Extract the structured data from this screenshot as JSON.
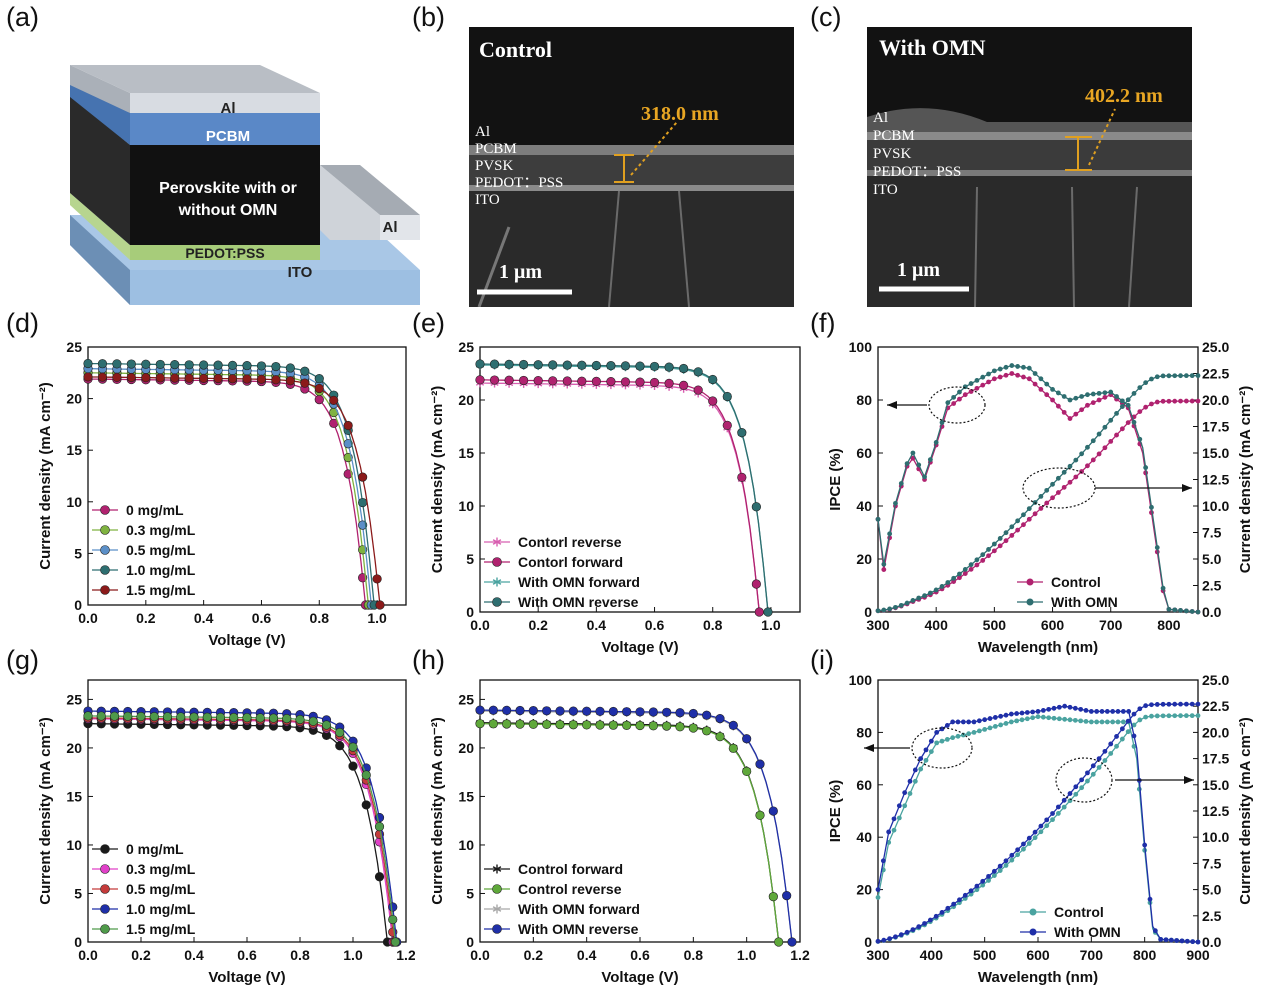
{
  "panel_labels": [
    "(a)",
    "(b)",
    "(c)",
    "(d)",
    "(e)",
    "(f)",
    "(g)",
    "(h)",
    "(i)"
  ],
  "device": {
    "layers": [
      "Al",
      "PCBM",
      "Perovskite with or",
      "without OMN",
      "PEDOT:PSS",
      "ITO",
      "Al"
    ]
  },
  "sem_b": {
    "title": "Control",
    "thickness": "318.0 nm",
    "layers": [
      "Al",
      "PCBM",
      "PVSK",
      "PEDOT：PSS",
      "ITO"
    ],
    "scale": "1 μm"
  },
  "sem_c": {
    "title": "With OMN",
    "thickness": "402.2 nm",
    "layers": [
      "Al",
      "PCBM",
      "PVSK",
      "PEDOT：PSS",
      "ITO"
    ],
    "scale": "1 μm"
  },
  "colors": {
    "magenta": "#b0226f",
    "green": "#7fb240",
    "blue_light": "#5b8fc7",
    "teal": "#2e6e70",
    "darkred": "#8b1a1a",
    "black": "#1a1a1a",
    "pink": "#d85fb0",
    "red": "#c43b3b",
    "navy": "#1f2fa8",
    "tealg": "#4aa3a0"
  },
  "chart_data": [
    {
      "panel": "d",
      "type": "line",
      "xlabel": "Voltage (V)",
      "ylabel": "Current density (mA cm⁻²)",
      "xlim": [
        0,
        1.1
      ],
      "ylim": [
        0,
        25
      ],
      "xticks": [
        "0.0",
        "0.2",
        "0.4",
        "0.6",
        "0.8",
        "1.0"
      ],
      "yticks": [
        "0",
        "5",
        "10",
        "15",
        "20",
        "25"
      ],
      "series": [
        {
          "name": "0    mg/mL",
          "Jsc": 21.9,
          "Voc": 0.96,
          "color": "#b0226f"
        },
        {
          "name": "0.3 mg/mL",
          "Jsc": 22.5,
          "Voc": 0.97,
          "color": "#7fb240"
        },
        {
          "name": "0.5 mg/mL",
          "Jsc": 22.9,
          "Voc": 0.98,
          "color": "#5b8fc7"
        },
        {
          "name": "1.0 mg/mL",
          "Jsc": 23.4,
          "Voc": 0.99,
          "color": "#2e6e70"
        },
        {
          "name": "1.5 mg/mL",
          "Jsc": 22.1,
          "Voc": 1.01,
          "color": "#8b1a1a"
        }
      ]
    },
    {
      "panel": "e",
      "type": "line",
      "xlabel": "Voltage (V)",
      "ylabel": "Current density (mA cm⁻²)",
      "xlim": [
        0,
        1.1
      ],
      "ylim": [
        0,
        25
      ],
      "xticks": [
        "0.0",
        "0.2",
        "0.4",
        "0.6",
        "0.8",
        "1.0"
      ],
      "yticks": [
        "0",
        "5",
        "10",
        "15",
        "20",
        "25"
      ],
      "series": [
        {
          "name": "Contorl reverse",
          "Jsc": 21.6,
          "Voc": 0.96,
          "color": "#d85fb0",
          "marker": "star"
        },
        {
          "name": "Contorl forward",
          "Jsc": 21.9,
          "Voc": 0.96,
          "color": "#b0226f",
          "marker": "ball"
        },
        {
          "name": "With OMN forward",
          "Jsc": 23.3,
          "Voc": 0.99,
          "color": "#4aa3a0",
          "marker": "star"
        },
        {
          "name": "With OMN reverse",
          "Jsc": 23.4,
          "Voc": 0.99,
          "color": "#2e6e70",
          "marker": "ball"
        }
      ]
    },
    {
      "panel": "f",
      "type": "line",
      "xlabel": "Wavelength (nm)",
      "ylabel": "IPCE (%)",
      "y2label": "Current density (mA cm⁻²)",
      "xlim": [
        300,
        850
      ],
      "ylim": [
        0,
        100
      ],
      "y2lim": [
        0,
        25
      ],
      "xticks": [
        "300",
        "400",
        "500",
        "600",
        "700",
        "800"
      ],
      "yticks": [
        "0",
        "20",
        "40",
        "60",
        "80",
        "100"
      ],
      "y2ticks": [
        "0.0",
        "2.5",
        "5.0",
        "7.5",
        "10.0",
        "12.5",
        "15.0",
        "17.5",
        "20.0",
        "22.5",
        "25.0"
      ],
      "series": [
        {
          "name": "Control",
          "color": "#b0226f",
          "ipce": [
            [
              300,
              35
            ],
            [
              310,
              16
            ],
            [
              330,
              40
            ],
            [
              350,
              55
            ],
            [
              360,
              58
            ],
            [
              380,
              50
            ],
            [
              400,
              63
            ],
            [
              420,
              77
            ],
            [
              450,
              82
            ],
            [
              500,
              88
            ],
            [
              530,
              90
            ],
            [
              560,
              88
            ],
            [
              600,
              80
            ],
            [
              630,
              73
            ],
            [
              660,
              78
            ],
            [
              700,
              82
            ],
            [
              730,
              77
            ],
            [
              755,
              60
            ],
            [
              775,
              30
            ],
            [
              790,
              8
            ],
            [
              800,
              1
            ],
            [
              850,
              0
            ]
          ],
          "jsc_final": 19.9
        },
        {
          "name": "With OMN",
          "color": "#2e6e70",
          "ipce": [
            [
              300,
              35
            ],
            [
              310,
              18
            ],
            [
              330,
              41
            ],
            [
              350,
              56
            ],
            [
              360,
              60
            ],
            [
              380,
              51
            ],
            [
              400,
              64
            ],
            [
              420,
              79
            ],
            [
              450,
              85
            ],
            [
              500,
              91
            ],
            [
              530,
              93
            ],
            [
              560,
              92
            ],
            [
              600,
              84
            ],
            [
              630,
              80
            ],
            [
              660,
              82
            ],
            [
              700,
              83
            ],
            [
              730,
              78
            ],
            [
              755,
              62
            ],
            [
              775,
              32
            ],
            [
              790,
              9
            ],
            [
              800,
              1
            ],
            [
              850,
              0
            ]
          ],
          "jsc_final": 22.3
        }
      ]
    },
    {
      "panel": "g",
      "type": "line",
      "xlabel": "Voltage (V)",
      "ylabel": "Current density (mA cm⁻²)",
      "xlim": [
        0,
        1.2
      ],
      "ylim": [
        0,
        27
      ],
      "xticks": [
        "0.0",
        "0.2",
        "0.4",
        "0.6",
        "0.8",
        "1.0",
        "1.2"
      ],
      "yticks": [
        "0",
        "5",
        "10",
        "15",
        "20",
        "25"
      ],
      "series": [
        {
          "name": "0    mg/mL",
          "Jsc": 22.5,
          "Voc": 1.13,
          "color": "#1a1a1a"
        },
        {
          "name": "0.3 mg/mL",
          "Jsc": 23.0,
          "Voc": 1.15,
          "color": "#e040c8"
        },
        {
          "name": "0.5 mg/mL",
          "Jsc": 23.1,
          "Voc": 1.155,
          "color": "#c43b3b"
        },
        {
          "name": "1.0 mg/mL",
          "Jsc": 23.8,
          "Voc": 1.165,
          "color": "#1f2fa8"
        },
        {
          "name": "1.5 mg/mL",
          "Jsc": 23.3,
          "Voc": 1.16,
          "color": "#4f9a4a"
        }
      ]
    },
    {
      "panel": "h",
      "type": "line",
      "xlabel": "Voltage (V)",
      "ylabel": "Current density (mA cm⁻²)",
      "xlim": [
        0,
        1.2
      ],
      "ylim": [
        0,
        27
      ],
      "xticks": [
        "0.0",
        "0.2",
        "0.4",
        "0.6",
        "0.8",
        "1.0",
        "1.2"
      ],
      "yticks": [
        "0",
        "5",
        "10",
        "15",
        "20",
        "25"
      ],
      "series": [
        {
          "name": "Control forward",
          "Jsc": 22.6,
          "Voc": 1.12,
          "color": "#1a1a1a",
          "marker": "star"
        },
        {
          "name": "Control reverse",
          "Jsc": 22.5,
          "Voc": 1.12,
          "color": "#5fa83a",
          "marker": "ball"
        },
        {
          "name": "With OMN forward",
          "Jsc": 23.8,
          "Voc": 1.17,
          "color": "#a8a8a8",
          "marker": "star"
        },
        {
          "name": "With OMN reverse",
          "Jsc": 23.9,
          "Voc": 1.17,
          "color": "#1f2fa8",
          "marker": "ball"
        }
      ]
    },
    {
      "panel": "i",
      "type": "line",
      "xlabel": "Wavelength (nm)",
      "ylabel": "IPCE (%)",
      "y2label": "Current density (mA cm⁻²)",
      "xlim": [
        300,
        900
      ],
      "ylim": [
        0,
        100
      ],
      "y2lim": [
        0,
        25
      ],
      "xticks": [
        "300",
        "400",
        "500",
        "600",
        "700",
        "800",
        "900"
      ],
      "yticks": [
        "0",
        "20",
        "40",
        "60",
        "80",
        "100"
      ],
      "y2ticks": [
        "0.0",
        "2.5",
        "5.0",
        "7.5",
        "10.0",
        "12.5",
        "15.0",
        "17.5",
        "20.0",
        "22.5",
        "25.0"
      ],
      "series": [
        {
          "name": "Control",
          "color": "#4aa3a0",
          "ipce": [
            [
              300,
              17
            ],
            [
              320,
              38
            ],
            [
              350,
              52
            ],
            [
              380,
              66
            ],
            [
              410,
              76
            ],
            [
              440,
              78
            ],
            [
              480,
              80
            ],
            [
              550,
              84
            ],
            [
              600,
              86
            ],
            [
              650,
              85
            ],
            [
              700,
              84
            ],
            [
              750,
              84
            ],
            [
              770,
              84
            ],
            [
              785,
              70
            ],
            [
              800,
              35
            ],
            [
              815,
              5
            ],
            [
              830,
              1
            ],
            [
              900,
              0
            ]
          ],
          "jsc_final": 21.6
        },
        {
          "name": "With OMN",
          "color": "#1f2fa8",
          "ipce": [
            [
              300,
              20
            ],
            [
              320,
              42
            ],
            [
              350,
              57
            ],
            [
              380,
              70
            ],
            [
              410,
              80
            ],
            [
              440,
              84
            ],
            [
              480,
              84
            ],
            [
              550,
              87
            ],
            [
              600,
              88
            ],
            [
              650,
              90
            ],
            [
              700,
              88
            ],
            [
              750,
              88
            ],
            [
              770,
              88
            ],
            [
              785,
              74
            ],
            [
              800,
              37
            ],
            [
              815,
              6
            ],
            [
              830,
              1
            ],
            [
              900,
              0
            ]
          ],
          "jsc_final": 22.7
        }
      ]
    }
  ]
}
